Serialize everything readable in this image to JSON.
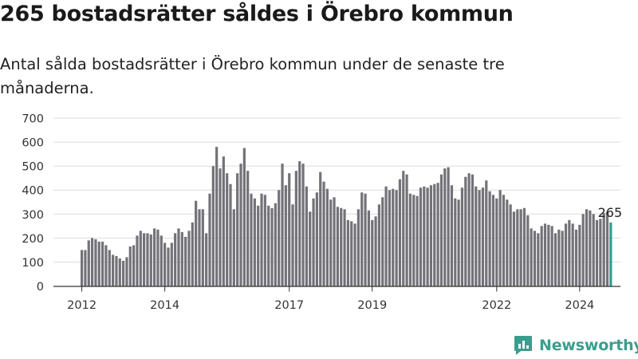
{
  "title": "265 bostadsrätter såldes i Örebro kommun",
  "subtitle": "Antal sålda bostadsrätter i Örebro kommun under de senaste tre månaderna.",
  "brand": {
    "name": "Newsworthy",
    "color": "#3a9e8e"
  },
  "colors": {
    "bar": "#737278",
    "highlight": "#2f9e91",
    "grid": "#dcdcdc",
    "axis": "#333333"
  },
  "chart_data": {
    "type": "bar",
    "ylim": [
      0,
      700
    ],
    "yticks": [
      0,
      100,
      200,
      300,
      400,
      500,
      600,
      700
    ],
    "xticks": [
      {
        "label": "2012",
        "index": 0
      },
      {
        "label": "2014",
        "index": 24
      },
      {
        "label": "2017",
        "index": 60
      },
      {
        "label": "2019",
        "index": 84
      },
      {
        "label": "2022",
        "index": 120
      },
      {
        "label": "2024",
        "index": 144
      }
    ],
    "values": [
      150,
      150,
      190,
      200,
      195,
      185,
      185,
      170,
      150,
      130,
      125,
      115,
      105,
      120,
      165,
      170,
      210,
      230,
      220,
      220,
      215,
      240,
      235,
      210,
      180,
      160,
      180,
      220,
      240,
      225,
      205,
      230,
      265,
      355,
      320,
      320,
      220,
      385,
      500,
      580,
      490,
      540,
      470,
      425,
      320,
      470,
      510,
      575,
      480,
      385,
      365,
      335,
      385,
      380,
      335,
      325,
      345,
      400,
      510,
      420,
      470,
      340,
      480,
      520,
      510,
      415,
      310,
      365,
      390,
      475,
      435,
      405,
      360,
      370,
      330,
      325,
      320,
      275,
      270,
      260,
      320,
      390,
      385,
      315,
      275,
      290,
      340,
      370,
      415,
      400,
      405,
      400,
      445,
      480,
      465,
      385,
      380,
      375,
      410,
      415,
      410,
      420,
      425,
      430,
      465,
      490,
      495,
      420,
      365,
      360,
      410,
      455,
      470,
      465,
      415,
      400,
      410,
      440,
      395,
      380,
      365,
      400,
      380,
      360,
      340,
      310,
      320,
      320,
      325,
      295,
      240,
      230,
      220,
      250,
      260,
      255,
      250,
      220,
      235,
      230,
      260,
      275,
      260,
      235,
      255,
      300,
      320,
      315,
      300,
      275,
      280,
      305,
      310,
      265
    ],
    "highlight_index": 153,
    "annotation": "265"
  }
}
